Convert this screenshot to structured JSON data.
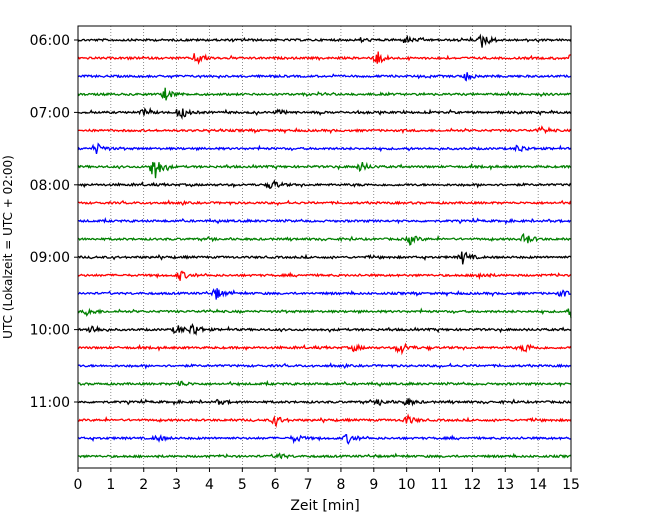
{
  "chart_data": {
    "type": "line",
    "title": "",
    "xlabel": "Zeit  [min]",
    "ylabel": "UTC (Lokalzeit = UTC + 02:00)",
    "xlim": [
      0,
      15
    ],
    "x_ticks": [
      "0",
      "1",
      "2",
      "3",
      "4",
      "5",
      "6",
      "7",
      "8",
      "9",
      "10",
      "11",
      "12",
      "13",
      "14",
      "15"
    ],
    "y_ticks": [
      "06:00",
      "07:00",
      "08:00",
      "09:00",
      "10:00",
      "11:00"
    ],
    "grid": "vertical dotted",
    "trace_colors": [
      "#000000",
      "#ff0000",
      "#0000ff",
      "#008000"
    ],
    "traces": [
      {
        "start": "06:00",
        "color": "#000000",
        "events": [
          [
            12.3,
            8
          ],
          [
            10.0,
            3
          ],
          [
            8.6,
            2
          ]
        ]
      },
      {
        "start": "06:15",
        "color": "#ff0000",
        "events": [
          [
            3.6,
            7
          ],
          [
            9.1,
            7
          ],
          [
            15.0,
            3
          ]
        ]
      },
      {
        "start": "06:30",
        "color": "#0000ff",
        "events": [
          [
            11.8,
            4
          ]
        ]
      },
      {
        "start": "06:45",
        "color": "#008000",
        "events": [
          [
            2.65,
            6
          ]
        ]
      },
      {
        "start": "07:00",
        "color": "#000000",
        "events": [
          [
            3.1,
            7
          ],
          [
            2.0,
            3
          ],
          [
            6.1,
            2
          ]
        ]
      },
      {
        "start": "07:15",
        "color": "#ff0000",
        "events": [
          [
            14.1,
            3
          ]
        ]
      },
      {
        "start": "07:30",
        "color": "#0000ff",
        "events": [
          [
            0.55,
            6
          ],
          [
            13.4,
            4
          ]
        ]
      },
      {
        "start": "07:45",
        "color": "#008000",
        "events": [
          [
            2.3,
            15
          ],
          [
            8.6,
            5
          ]
        ]
      },
      {
        "start": "08:00",
        "color": "#000000",
        "events": [
          [
            5.9,
            5
          ]
        ]
      },
      {
        "start": "08:15",
        "color": "#ff0000",
        "events": []
      },
      {
        "start": "08:30",
        "color": "#0000ff",
        "events": []
      },
      {
        "start": "08:45",
        "color": "#008000",
        "events": [
          [
            10.1,
            5
          ],
          [
            13.6,
            6
          ]
        ]
      },
      {
        "start": "09:00",
        "color": "#000000",
        "events": [
          [
            11.7,
            7
          ]
        ]
      },
      {
        "start": "09:15",
        "color": "#ff0000",
        "events": [
          [
            3.1,
            5
          ],
          [
            12.2,
            3
          ]
        ]
      },
      {
        "start": "09:30",
        "color": "#0000ff",
        "events": [
          [
            4.2,
            6
          ],
          [
            14.7,
            3
          ]
        ]
      },
      {
        "start": "09:45",
        "color": "#008000",
        "events": [
          [
            15.0,
            6
          ],
          [
            0.3,
            4
          ]
        ]
      },
      {
        "start": "10:00",
        "color": "#000000",
        "events": [
          [
            3.5,
            7
          ],
          [
            3.0,
            5
          ],
          [
            0.4,
            5
          ]
        ]
      },
      {
        "start": "10:15",
        "color": "#ff0000",
        "events": [
          [
            9.8,
            7
          ],
          [
            13.6,
            5
          ],
          [
            8.4,
            3
          ]
        ]
      },
      {
        "start": "10:30",
        "color": "#0000ff",
        "events": []
      },
      {
        "start": "10:45",
        "color": "#008000",
        "events": [
          [
            3.1,
            3
          ]
        ]
      },
      {
        "start": "11:00",
        "color": "#000000",
        "events": [
          [
            10.0,
            4
          ],
          [
            9.2,
            3
          ],
          [
            4.3,
            2
          ]
        ]
      },
      {
        "start": "11:15",
        "color": "#ff0000",
        "events": [
          [
            6.0,
            5
          ],
          [
            10.0,
            5
          ]
        ]
      },
      {
        "start": "11:30",
        "color": "#0000ff",
        "events": [
          [
            8.2,
            5
          ],
          [
            6.6,
            4
          ],
          [
            2.4,
            3
          ]
        ]
      },
      {
        "start": "11:45",
        "color": "#008000",
        "events": [
          [
            6.1,
            3
          ]
        ]
      }
    ]
  }
}
